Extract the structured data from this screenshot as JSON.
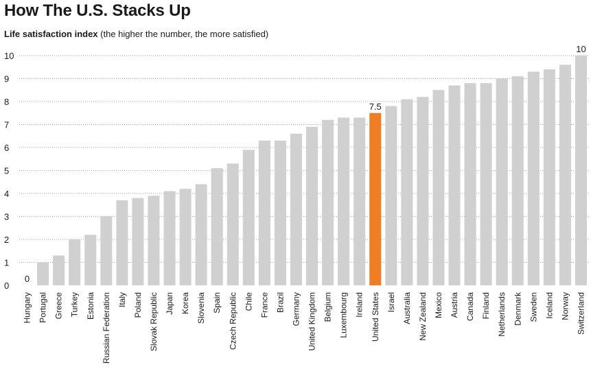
{
  "chart_data": {
    "type": "bar",
    "title": "How The U.S. Stacks Up",
    "ylabel_bold": "Life satisfaction index",
    "ylabel_note": "(the higher the number, the more satisfied)",
    "ylim": [
      0,
      10
    ],
    "yticks": [
      0,
      1,
      2,
      3,
      4,
      5,
      6,
      7,
      8,
      9,
      10
    ],
    "grid": true,
    "categories": [
      "Hungary",
      "Portugal",
      "Greece",
      "Turkey",
      "Estonia",
      "Russian Federation",
      "Italy",
      "Poland",
      "Slovak Republic",
      "Japan",
      "Korea",
      "Slovenia",
      "Spain",
      "Czech Republic",
      "Chile",
      "France",
      "Brazil",
      "Germany",
      "United Kingdom",
      "Belgium",
      "Luxembourg",
      "Ireland",
      "United States",
      "Israel",
      "Australia",
      "New Zealand",
      "Mexico",
      "Austria",
      "Canada",
      "Finland",
      "Netherlands",
      "Denmark",
      "Sweden",
      "Iceland",
      "Norway",
      "Switzerland"
    ],
    "values": [
      0,
      1.0,
      1.3,
      2.0,
      2.2,
      3.0,
      3.7,
      3.8,
      3.9,
      4.1,
      4.2,
      4.4,
      5.1,
      5.3,
      5.9,
      6.3,
      6.3,
      6.6,
      6.9,
      7.2,
      7.3,
      7.3,
      7.5,
      7.8,
      8.1,
      8.2,
      8.5,
      8.7,
      8.8,
      8.8,
      9.0,
      9.1,
      9.3,
      9.4,
      9.6,
      10.0
    ],
    "highlight_category": "United States",
    "data_labels": [
      {
        "category": "Hungary",
        "text": "0"
      },
      {
        "category": "United States",
        "text": "7.5"
      },
      {
        "category": "Switzerland",
        "text": "10"
      }
    ],
    "colors": {
      "bar": "#d0d0d0",
      "highlight": "#f07f24",
      "grid": "#9a9a9a",
      "text": "#1a1a1a"
    }
  }
}
